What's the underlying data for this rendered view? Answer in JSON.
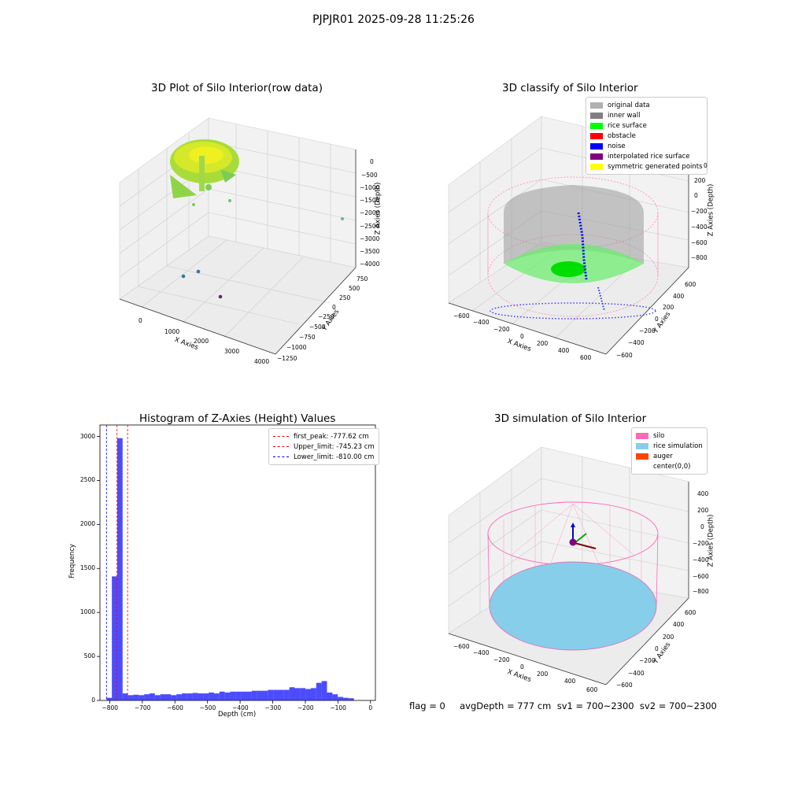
{
  "suptitle": "PJPJR01 2025-09-28 11:25:26",
  "panels": {
    "raw": {
      "title": "3D Plot of Silo Interior(row data)",
      "xlabel": "X Axies",
      "ylabel": "Y Axies",
      "zlabel": "Z Axies (Depth)",
      "xticks": [
        "0",
        "1000",
        "2000",
        "3000",
        "4000"
      ],
      "yticks": [
        "750",
        "500",
        "250",
        "0",
        "−250",
        "−500",
        "−750",
        "−1000",
        "−1250"
      ],
      "zticks": [
        "0",
        "−500",
        "−1000",
        "−1500",
        "−2000",
        "−2500",
        "−3000",
        "−3500",
        "−4000"
      ]
    },
    "classify": {
      "title": "3D classify of Silo Interior",
      "xlabel": "X Axies",
      "ylabel": "Y Axies",
      "zlabel": "Z Axies (Depth)",
      "xticks": [
        "−600",
        "−400",
        "−200",
        "0",
        "200",
        "400",
        "600"
      ],
      "yticks": [
        "600",
        "400",
        "200",
        "0",
        "−200",
        "−400",
        "−600"
      ],
      "zticks": [
        "200",
        "0",
        "−200",
        "−400",
        "−600",
        "−800"
      ],
      "ztick_partial": "0",
      "legend": [
        {
          "label": "original data",
          "color": "#b0b0b0"
        },
        {
          "label": "inner wall",
          "color": "#808080"
        },
        {
          "label": "rice surface",
          "color": "#00ff00"
        },
        {
          "label": "obstacle",
          "color": "#ff0000"
        },
        {
          "label": "noise",
          "color": "#0000ff"
        },
        {
          "label": "interpolated rice surface",
          "color": "#800080"
        },
        {
          "label": "symmetric generated points",
          "color": "#ffff00"
        }
      ]
    },
    "simulation": {
      "title": "3D simulation of Silo Interior",
      "xlabel": "X Axies",
      "ylabel": "Y Axies",
      "zlabel": "Z Axies (Depth)",
      "xticks": [
        "−600",
        "−400",
        "−200",
        "0",
        "200",
        "400",
        "600"
      ],
      "yticks": [
        "600",
        "400",
        "200",
        "0",
        "−200",
        "−400",
        "−600"
      ],
      "zticks": [
        "400",
        "200",
        "0",
        "−200",
        "−400",
        "−600",
        "−800"
      ],
      "legend": [
        {
          "label": "silo",
          "color": "#ff69b4"
        },
        {
          "label": "rice simulation",
          "color": "#87ceeb"
        },
        {
          "label": "auger",
          "color": "#ff4500"
        },
        {
          "label": "center(0,0)",
          "color": "#ffffff"
        }
      ]
    }
  },
  "chart_data": {
    "type": "bar",
    "title": "Histogram of Z-Axies (Height) Values",
    "xlabel": "Depth (cm)",
    "ylabel": "Frequency",
    "xlim": [
      -830,
      15
    ],
    "ylim": [
      0,
      3130
    ],
    "xticks": [
      -800,
      -700,
      -600,
      -500,
      -400,
      -300,
      -200,
      -100,
      0
    ],
    "xtick_labels": [
      "−800",
      "−700",
      "−600",
      "−500",
      "−400",
      "−300",
      "−200",
      "−100",
      "0"
    ],
    "yticks": [
      0,
      500,
      1000,
      1500,
      2000,
      2500,
      3000
    ],
    "bar_color": "#0000ff",
    "bins": {
      "start": -810,
      "width": 16.5,
      "values": [
        30,
        1410,
        2980,
        80,
        60,
        65,
        60,
        70,
        80,
        60,
        70,
        70,
        60,
        70,
        80,
        80,
        85,
        80,
        80,
        90,
        80,
        100,
        90,
        100,
        100,
        100,
        100,
        110,
        110,
        110,
        120,
        120,
        120,
        120,
        150,
        140,
        140,
        130,
        140,
        200,
        220,
        90,
        70,
        40,
        30,
        25
      ]
    },
    "lines": [
      {
        "label": "first_peak: -777.62 cm",
        "x": -777.62,
        "color": "#ff0000"
      },
      {
        "label": "Upper_limit: -745.23 cm",
        "x": -745.23,
        "color": "#ff0000"
      },
      {
        "label": "Lower_limit: -810.00 cm",
        "x": -810.0,
        "color": "#0000ff"
      }
    ],
    "legend_position": "upper right"
  },
  "status": {
    "text": "flag = 0     avgDepth = 777 cm  sv1 = 700~2300  sv2 = 700~2300"
  }
}
